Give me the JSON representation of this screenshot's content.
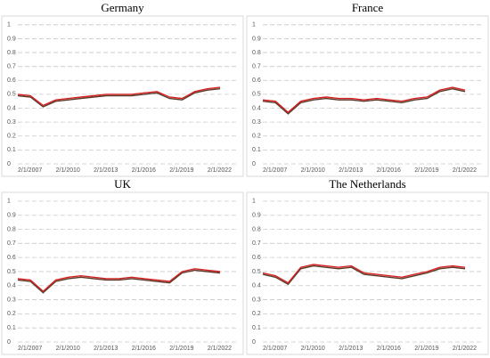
{
  "chart_data": [
    {
      "type": "line",
      "title": "Germany",
      "x": [
        "2/1/2007",
        "2/1/2008",
        "2/1/2009",
        "2/1/2010",
        "2/1/2011",
        "2/1/2012",
        "2/1/2013",
        "2/1/2014",
        "2/1/2015",
        "2/1/2016",
        "2/1/2017",
        "2/1/2018",
        "2/1/2019",
        "2/1/2020",
        "2/1/2021",
        "2/1/2022",
        "2/1/2023"
      ],
      "xticks": [
        "2/1/2007",
        "2/1/2010",
        "2/1/2013",
        "2/1/2016",
        "2/1/2019",
        "2/1/2022"
      ],
      "ylim": [
        0,
        1.05
      ],
      "yticks": [
        0,
        0.1,
        0.2,
        0.3,
        0.4,
        0.5,
        0.6,
        0.7,
        0.8,
        0.9,
        1
      ],
      "grid": true,
      "series": [
        {
          "color": "#5a3a2a",
          "values": [
            0.49,
            0.48,
            0.41,
            0.45,
            0.46,
            0.47,
            0.48,
            0.49,
            0.49,
            0.49,
            0.5,
            0.51,
            0.47,
            0.46,
            0.51,
            0.53,
            0.54
          ]
        },
        {
          "color": "#d42020",
          "values": [
            0.5,
            0.49,
            0.42,
            0.46,
            0.47,
            0.48,
            0.49,
            0.5,
            0.5,
            0.5,
            0.51,
            0.52,
            0.48,
            0.47,
            0.52,
            0.54,
            0.55
          ]
        }
      ]
    },
    {
      "type": "line",
      "title": "France",
      "x": [
        "2/1/2007",
        "2/1/2008",
        "2/1/2009",
        "2/1/2010",
        "2/1/2011",
        "2/1/2012",
        "2/1/2013",
        "2/1/2014",
        "2/1/2015",
        "2/1/2016",
        "2/1/2017",
        "2/1/2018",
        "2/1/2019",
        "2/1/2020",
        "2/1/2021",
        "2/1/2022",
        "2/1/2023"
      ],
      "xticks": [
        "2/1/2007",
        "2/1/2010",
        "2/1/2013",
        "2/1/2016",
        "2/1/2019",
        "2/1/2022"
      ],
      "ylim": [
        0,
        1.05
      ],
      "yticks": [
        0,
        0.1,
        0.2,
        0.3,
        0.4,
        0.5,
        0.6,
        0.7,
        0.8,
        0.9,
        1
      ],
      "grid": true,
      "series": [
        {
          "color": "#5a3a2a",
          "values": [
            0.45,
            0.44,
            0.36,
            0.44,
            0.46,
            0.47,
            0.46,
            0.46,
            0.45,
            0.46,
            0.45,
            0.44,
            0.46,
            0.47,
            0.52,
            0.54,
            0.52
          ]
        },
        {
          "color": "#d42020",
          "values": [
            0.46,
            0.45,
            0.37,
            0.45,
            0.47,
            0.48,
            0.47,
            0.47,
            0.46,
            0.47,
            0.46,
            0.45,
            0.47,
            0.48,
            0.53,
            0.55,
            0.53
          ]
        }
      ]
    },
    {
      "type": "line",
      "title": "UK",
      "x": [
        "2/1/2007",
        "2/1/2008",
        "2/1/2009",
        "2/1/2010",
        "2/1/2011",
        "2/1/2012",
        "2/1/2013",
        "2/1/2014",
        "2/1/2015",
        "2/1/2016",
        "2/1/2017",
        "2/1/2018",
        "2/1/2019",
        "2/1/2020",
        "2/1/2021",
        "2/1/2022",
        "2/1/2023"
      ],
      "xticks": [
        "2/1/2007",
        "2/1/2010",
        "2/1/2013",
        "2/1/2016",
        "2/1/2019",
        "2/1/2022"
      ],
      "ylim": [
        0,
        1.05
      ],
      "yticks": [
        0,
        0.1,
        0.2,
        0.3,
        0.4,
        0.5,
        0.6,
        0.7,
        0.8,
        0.9,
        1
      ],
      "grid": true,
      "series": [
        {
          "color": "#5a3a2a",
          "values": [
            0.44,
            0.43,
            0.35,
            0.43,
            0.45,
            0.46,
            0.45,
            0.44,
            0.44,
            0.45,
            0.44,
            0.43,
            0.42,
            0.49,
            0.51,
            0.5,
            0.49
          ]
        },
        {
          "color": "#d42020",
          "values": [
            0.45,
            0.44,
            0.36,
            0.44,
            0.46,
            0.47,
            0.46,
            0.45,
            0.45,
            0.46,
            0.45,
            0.44,
            0.43,
            0.5,
            0.52,
            0.51,
            0.5
          ]
        }
      ]
    },
    {
      "type": "line",
      "title": "The Netherlands",
      "x": [
        "2/1/2007",
        "2/1/2008",
        "2/1/2009",
        "2/1/2010",
        "2/1/2011",
        "2/1/2012",
        "2/1/2013",
        "2/1/2014",
        "2/1/2015",
        "2/1/2016",
        "2/1/2017",
        "2/1/2018",
        "2/1/2019",
        "2/1/2020",
        "2/1/2021",
        "2/1/2022",
        "2/1/2023"
      ],
      "xticks": [
        "2/1/2007",
        "2/1/2010",
        "2/1/2013",
        "2/1/2016",
        "2/1/2019",
        "2/1/2022"
      ],
      "ylim": [
        0,
        1.05
      ],
      "yticks": [
        0,
        0.1,
        0.2,
        0.3,
        0.4,
        0.5,
        0.6,
        0.7,
        0.8,
        0.9,
        1
      ],
      "grid": true,
      "series": [
        {
          "color": "#5a3a2a",
          "values": [
            0.48,
            0.46,
            0.41,
            0.52,
            0.54,
            0.53,
            0.52,
            0.53,
            0.48,
            0.47,
            0.46,
            0.45,
            0.47,
            0.49,
            0.52,
            0.53,
            0.52
          ]
        },
        {
          "color": "#d42020",
          "values": [
            0.49,
            0.47,
            0.42,
            0.53,
            0.55,
            0.54,
            0.53,
            0.54,
            0.49,
            0.48,
            0.47,
            0.46,
            0.48,
            0.5,
            0.53,
            0.54,
            0.53
          ]
        }
      ]
    }
  ]
}
